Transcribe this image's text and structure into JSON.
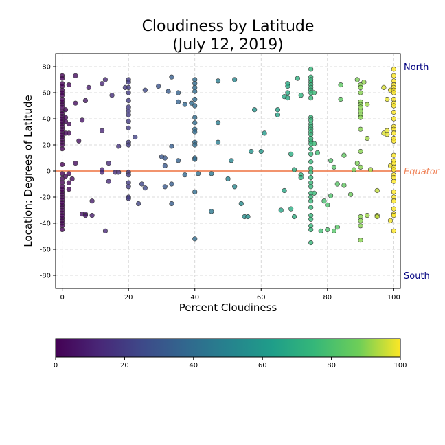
{
  "chart_data": {
    "type": "scatter",
    "title_line1": "Cloudiness by Latitude",
    "title_line2": "(July 12, 2019)",
    "xlabel": "Percent Cloudiness",
    "ylabel": "Location: Degrees of Latitude",
    "xlim": [
      -2,
      102
    ],
    "ylim": [
      -90,
      90
    ],
    "xticks": [
      0,
      20,
      40,
      60,
      80,
      100
    ],
    "yticks": [
      -80,
      -60,
      -40,
      -20,
      0,
      20,
      40,
      60,
      80
    ],
    "grid": true,
    "equator_line": {
      "y": 0,
      "color": "#f0845a"
    },
    "annotations": [
      {
        "text": "North",
        "color": "#000080",
        "y": 80
      },
      {
        "text": "Equator",
        "color": "#f0845a",
        "y": 0,
        "italic": true
      },
      {
        "text": "South",
        "color": "#000080",
        "y": -80
      }
    ],
    "colorbar": {
      "min": 0,
      "max": 100,
      "ticks": [
        0,
        20,
        40,
        60,
        80,
        100
      ],
      "colormap": "viridis"
    },
    "points": [
      [
        0,
        73
      ],
      [
        0,
        71
      ],
      [
        0,
        67
      ],
      [
        0,
        65
      ],
      [
        0,
        62
      ],
      [
        0,
        60
      ],
      [
        0,
        58
      ],
      [
        0,
        55
      ],
      [
        0,
        53
      ],
      [
        0,
        51
      ],
      [
        0,
        49
      ],
      [
        0,
        46
      ],
      [
        0,
        44
      ],
      [
        0,
        42
      ],
      [
        0,
        40
      ],
      [
        0,
        38
      ],
      [
        0,
        36
      ],
      [
        0,
        34
      ],
      [
        0,
        32
      ],
      [
        0,
        30
      ],
      [
        0,
        28
      ],
      [
        0,
        26
      ],
      [
        0,
        24
      ],
      [
        0,
        22
      ],
      [
        0,
        20
      ],
      [
        0,
        17
      ],
      [
        0,
        5
      ],
      [
        0,
        -2
      ],
      [
        0,
        -6
      ],
      [
        0,
        -9
      ],
      [
        0,
        -12
      ],
      [
        0,
        -14
      ],
      [
        0,
        -16
      ],
      [
        0,
        -18
      ],
      [
        0,
        -20
      ],
      [
        0,
        -22
      ],
      [
        0,
        -24
      ],
      [
        0,
        -26
      ],
      [
        0,
        -28
      ],
      [
        0,
        -30
      ],
      [
        0,
        -32
      ],
      [
        0,
        -34
      ],
      [
        0,
        -36
      ],
      [
        0,
        -38
      ],
      [
        0,
        -40
      ],
      [
        0,
        -42
      ],
      [
        0,
        -45
      ],
      [
        1,
        47
      ],
      [
        1,
        41
      ],
      [
        1,
        38
      ],
      [
        1,
        29
      ],
      [
        1,
        -4
      ],
      [
        2,
        66
      ],
      [
        2,
        36
      ],
      [
        2,
        29
      ],
      [
        2,
        -2
      ],
      [
        2,
        -9
      ],
      [
        2,
        -14
      ],
      [
        3,
        -6
      ],
      [
        4,
        73
      ],
      [
        4,
        52
      ],
      [
        4,
        6
      ],
      [
        5,
        23
      ],
      [
        6,
        39
      ],
      [
        6,
        -33
      ],
      [
        7,
        54
      ],
      [
        7,
        -33
      ],
      [
        7,
        -34
      ],
      [
        8,
        64
      ],
      [
        9,
        -23
      ],
      [
        9,
        -34
      ],
      [
        12,
        67
      ],
      [
        12,
        31
      ],
      [
        12,
        1
      ],
      [
        12,
        -1
      ],
      [
        13,
        70
      ],
      [
        13,
        -46
      ],
      [
        14,
        6
      ],
      [
        14,
        -8
      ],
      [
        15,
        58
      ],
      [
        16,
        -1
      ],
      [
        17,
        19
      ],
      [
        17,
        -1
      ],
      [
        19,
        64
      ],
      [
        20,
        70
      ],
      [
        20,
        68
      ],
      [
        20,
        64
      ],
      [
        20,
        60
      ],
      [
        20,
        54
      ],
      [
        20,
        49
      ],
      [
        20,
        46
      ],
      [
        20,
        43
      ],
      [
        20,
        38
      ],
      [
        20,
        33
      ],
      [
        20,
        22
      ],
      [
        20,
        20
      ],
      [
        20,
        -1
      ],
      [
        20,
        -3
      ],
      [
        20,
        -9
      ],
      [
        20,
        -12
      ],
      [
        20,
        -20
      ],
      [
        20,
        -21
      ],
      [
        22,
        26
      ],
      [
        23,
        -25
      ],
      [
        24,
        -10
      ],
      [
        25,
        62
      ],
      [
        25,
        -13
      ],
      [
        29,
        65
      ],
      [
        30,
        11
      ],
      [
        31,
        10
      ],
      [
        31,
        4
      ],
      [
        31,
        -12
      ],
      [
        32,
        61
      ],
      [
        33,
        72
      ],
      [
        33,
        19
      ],
      [
        33,
        -10
      ],
      [
        33,
        -25
      ],
      [
        35,
        60
      ],
      [
        35,
        53
      ],
      [
        35,
        8
      ],
      [
        37,
        51
      ],
      [
        37,
        -3
      ],
      [
        39,
        52
      ],
      [
        40,
        70
      ],
      [
        40,
        67
      ],
      [
        40,
        64
      ],
      [
        40,
        61
      ],
      [
        40,
        55
      ],
      [
        40,
        50
      ],
      [
        40,
        41
      ],
      [
        40,
        37
      ],
      [
        40,
        32
      ],
      [
        40,
        30
      ],
      [
        40,
        22
      ],
      [
        40,
        20
      ],
      [
        40,
        10
      ],
      [
        40,
        9
      ],
      [
        40,
        -16
      ],
      [
        40,
        -52
      ],
      [
        41,
        -2
      ],
      [
        45,
        -2
      ],
      [
        45,
        -31
      ],
      [
        47,
        69
      ],
      [
        47,
        37
      ],
      [
        47,
        22
      ],
      [
        50,
        -6
      ],
      [
        51,
        8
      ],
      [
        52,
        70
      ],
      [
        52,
        -12
      ],
      [
        54,
        -25
      ],
      [
        55,
        -35
      ],
      [
        56,
        -35
      ],
      [
        57,
        15
      ],
      [
        58,
        47
      ],
      [
        60,
        15
      ],
      [
        61,
        29
      ],
      [
        65,
        47
      ],
      [
        65,
        43
      ],
      [
        66,
        -30
      ],
      [
        67,
        57
      ],
      [
        67,
        -15
      ],
      [
        68,
        67
      ],
      [
        68,
        65
      ],
      [
        68,
        60
      ],
      [
        68,
        56
      ],
      [
        69,
        13
      ],
      [
        69,
        -29
      ],
      [
        70,
        -35
      ],
      [
        70,
        1
      ],
      [
        71,
        71
      ],
      [
        72,
        58
      ],
      [
        72,
        -3
      ],
      [
        72,
        -5
      ],
      [
        75,
        78
      ],
      [
        75,
        72
      ],
      [
        75,
        70
      ],
      [
        75,
        68
      ],
      [
        75,
        66
      ],
      [
        75,
        64
      ],
      [
        75,
        62
      ],
      [
        75,
        60
      ],
      [
        75,
        56
      ],
      [
        75,
        41
      ],
      [
        75,
        39
      ],
      [
        75,
        36
      ],
      [
        75,
        34
      ],
      [
        75,
        32
      ],
      [
        75,
        30
      ],
      [
        75,
        28
      ],
      [
        75,
        25
      ],
      [
        75,
        23
      ],
      [
        75,
        21
      ],
      [
        75,
        17
      ],
      [
        75,
        13
      ],
      [
        75,
        7
      ],
      [
        75,
        2
      ],
      [
        75,
        -1
      ],
      [
        75,
        -5
      ],
      [
        75,
        -9
      ],
      [
        75,
        -12
      ],
      [
        75,
        -17
      ],
      [
        75,
        -20
      ],
      [
        75,
        -23
      ],
      [
        75,
        -28
      ],
      [
        75,
        -34
      ],
      [
        75,
        -37
      ],
      [
        75,
        -42
      ],
      [
        75,
        -45
      ],
      [
        75,
        -55
      ],
      [
        76,
        60
      ],
      [
        76,
        21
      ],
      [
        76,
        -17
      ],
      [
        77,
        14
      ],
      [
        78,
        -46
      ],
      [
        79,
        -23
      ],
      [
        80,
        -26
      ],
      [
        80,
        -45
      ],
      [
        81,
        8
      ],
      [
        81,
        -19
      ],
      [
        82,
        3
      ],
      [
        82,
        -46
      ],
      [
        83,
        -43
      ],
      [
        83,
        -10
      ],
      [
        84,
        66
      ],
      [
        84,
        55
      ],
      [
        85,
        12
      ],
      [
        85,
        -11
      ],
      [
        87,
        -18
      ],
      [
        88,
        1
      ],
      [
        89,
        70
      ],
      [
        89,
        6
      ],
      [
        90,
        66
      ],
      [
        90,
        64
      ],
      [
        90,
        60
      ],
      [
        90,
        53
      ],
      [
        90,
        51
      ],
      [
        90,
        49
      ],
      [
        90,
        46
      ],
      [
        90,
        43
      ],
      [
        90,
        41
      ],
      [
        90,
        32
      ],
      [
        90,
        15
      ],
      [
        90,
        3
      ],
      [
        90,
        -35
      ],
      [
        90,
        -38
      ],
      [
        90,
        -42
      ],
      [
        90,
        -53
      ],
      [
        91,
        68
      ],
      [
        92,
        51
      ],
      [
        92,
        25
      ],
      [
        92,
        -34
      ],
      [
        93,
        1
      ],
      [
        95,
        -15
      ],
      [
        95,
        -34
      ],
      [
        95,
        -35
      ],
      [
        97,
        64
      ],
      [
        97,
        29
      ],
      [
        98,
        55
      ],
      [
        98,
        31
      ],
      [
        98,
        28
      ],
      [
        99,
        62
      ],
      [
        99,
        4
      ],
      [
        99,
        -38
      ],
      [
        100,
        78
      ],
      [
        100,
        73
      ],
      [
        100,
        69
      ],
      [
        100,
        66
      ],
      [
        100,
        64
      ],
      [
        100,
        62
      ],
      [
        100,
        60
      ],
      [
        100,
        55
      ],
      [
        100,
        52
      ],
      [
        100,
        50
      ],
      [
        100,
        45
      ],
      [
        100,
        40
      ],
      [
        100,
        34
      ],
      [
        100,
        32
      ],
      [
        100,
        29
      ],
      [
        100,
        25
      ],
      [
        100,
        23
      ],
      [
        100,
        12
      ],
      [
        100,
        8
      ],
      [
        100,
        6
      ],
      [
        100,
        3
      ],
      [
        100,
        1
      ],
      [
        100,
        -3
      ],
      [
        100,
        -5
      ],
      [
        100,
        -8
      ],
      [
        100,
        -16
      ],
      [
        100,
        -20
      ],
      [
        100,
        -23
      ],
      [
        100,
        -29
      ],
      [
        100,
        -33
      ],
      [
        100,
        -34
      ],
      [
        100,
        -46
      ]
    ]
  }
}
